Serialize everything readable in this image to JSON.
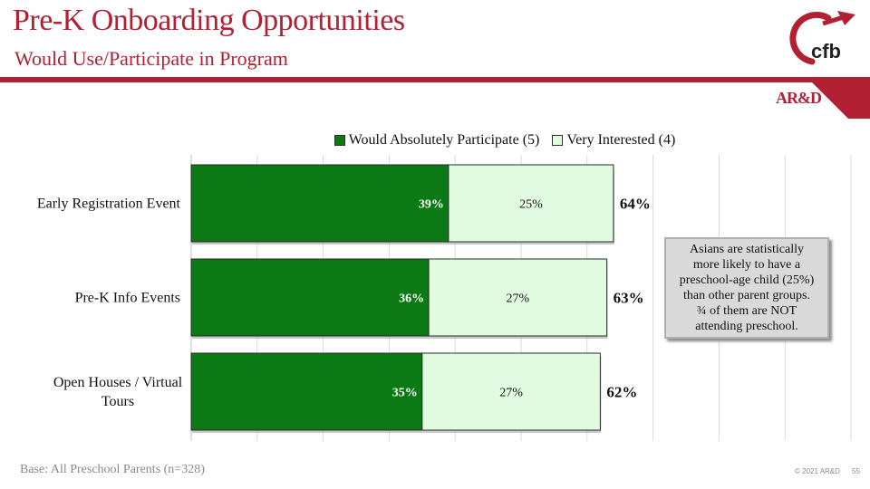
{
  "header": {
    "title": "Pre-K Onboarding Opportunities",
    "subtitle": "Would Use/Participate in Program",
    "logo_text": "cfb",
    "brand_mark": "AR&D"
  },
  "colors": {
    "brand_red": "#b22033",
    "series_dark": "#0b7a14",
    "series_light": "#e1fbe1"
  },
  "chart_data": {
    "type": "bar",
    "orientation": "horizontal",
    "stacked": true,
    "categories": [
      "Early Registration Event",
      "Pre-K Info Events",
      "Open Houses / Virtual Tours"
    ],
    "series": [
      {
        "name": "Would Absolutely Participate (5)",
        "values": [
          39,
          36,
          35
        ],
        "labels": [
          "39%",
          "36%",
          "35%"
        ]
      },
      {
        "name": "Very Interested (4)",
        "values": [
          25,
          27,
          27
        ],
        "labels": [
          "25%",
          "27%",
          "27%"
        ]
      }
    ],
    "totals": [
      64,
      63,
      62
    ],
    "total_labels": [
      "64%",
      "63%",
      "62%"
    ],
    "xlim": [
      0,
      100
    ],
    "grid": true,
    "legend_position": "top"
  },
  "callout": {
    "lines": [
      "Asians are statistically",
      "more likely to have a",
      "preschool-age child (25%)",
      "than other parent groups.",
      "¾ of them are NOT",
      "attending preschool."
    ]
  },
  "footer": {
    "base": "Base:  All Preschool Parents (n=328)",
    "copyright": "© 2021 AR&D",
    "page_number": "55"
  }
}
